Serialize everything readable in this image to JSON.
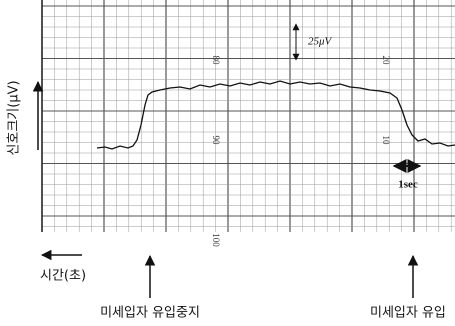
{
  "y_axis_label": "신호크기(μV)",
  "x_axis_label": "시간(초)",
  "scale_bar_amplitude": "25μV",
  "scale_bar_time": "1sec",
  "paper_numbers": [
    "80",
    "20",
    "90",
    "10",
    "100"
  ],
  "annotations": [
    "미세입자 유입중지",
    "미세입자 유입"
  ]
}
